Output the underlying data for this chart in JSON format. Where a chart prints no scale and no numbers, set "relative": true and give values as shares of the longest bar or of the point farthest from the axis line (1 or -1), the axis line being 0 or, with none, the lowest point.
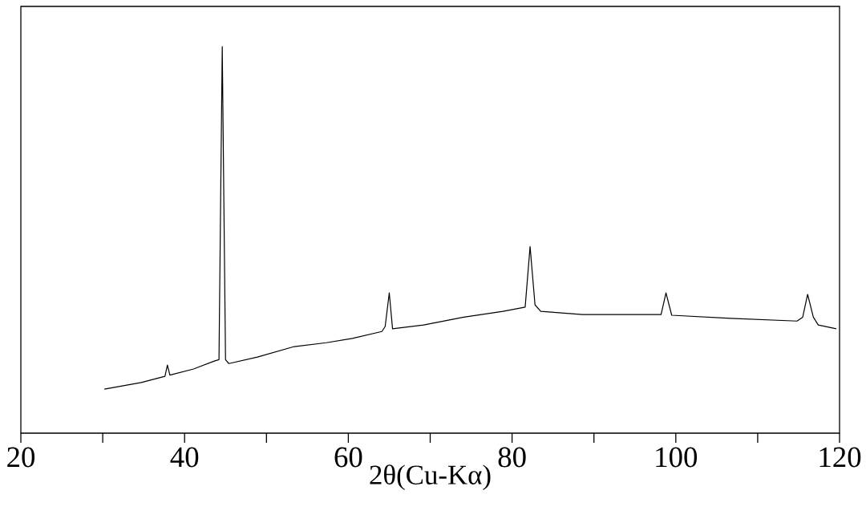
{
  "chart_data": {
    "type": "line",
    "relative": true,
    "xlabel": "2θ(Cu-Kα)",
    "xlim": [
      20,
      120
    ],
    "xticks": [
      20,
      {
        "value": 30,
        "label": null
      },
      40,
      {
        "value": 50,
        "label": null
      },
      60,
      {
        "value": 70,
        "label": null
      },
      80,
      {
        "value": 90,
        "label": null
      },
      100,
      {
        "value": 110,
        "label": null
      },
      120
    ],
    "x": [
      30.2,
      34.7,
      37.6,
      37.9,
      38.2,
      41.1,
      43.7,
      44.2,
      44.6,
      45.0,
      45.4,
      48.9,
      53.4,
      57.3,
      60.5,
      64.1,
      64.5,
      65.0,
      65.4,
      69.2,
      74.1,
      78.9,
      81.6,
      82.2,
      82.8,
      83.5,
      88.6,
      94.8,
      98.2,
      98.8,
      99.5,
      106.7,
      114.8,
      115.5,
      116.1,
      116.8,
      117.4,
      119.6
    ],
    "series": [
      {
        "color": "#000000",
        "values": [
          0.114,
          0.131,
          0.147,
          0.176,
          0.15,
          0.166,
          0.187,
          0.19,
          1.0,
          0.19,
          0.18,
          0.197,
          0.224,
          0.234,
          0.245,
          0.263,
          0.276,
          0.363,
          0.27,
          0.28,
          0.3,
          0.315,
          0.326,
          0.483,
          0.332,
          0.315,
          0.307,
          0.307,
          0.307,
          0.363,
          0.305,
          0.297,
          0.29,
          0.3,
          0.359,
          0.3,
          0.28,
          0.27
        ]
      }
    ]
  }
}
